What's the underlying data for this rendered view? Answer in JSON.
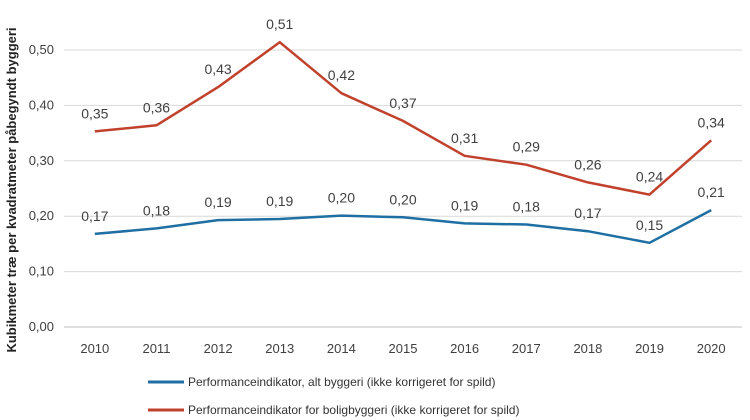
{
  "chart_data": {
    "type": "line",
    "title": "",
    "xlabel": "",
    "ylabel": "Kubikmeter træ per kvadratmeter påbegyndt byggeri",
    "ylim": [
      0,
      0.5
    ],
    "yticks": [
      0.0,
      0.1,
      0.2,
      0.3,
      0.4,
      0.5
    ],
    "ytick_labels": [
      "0,00",
      "0,10",
      "0,20",
      "0,30",
      "0,40",
      "0,50"
    ],
    "x": [
      "2010",
      "2011",
      "2012",
      "2013",
      "2014",
      "2015",
      "2016",
      "2017",
      "2018",
      "2019",
      "2020"
    ],
    "grid": true,
    "legend_position": "bottom-center",
    "series": [
      {
        "name": "Performanceindikator, alt byggeri (ikke korrigeret for spild)",
        "color": "#1f6fa3",
        "values": [
          0.168,
          0.178,
          0.193,
          0.195,
          0.201,
          0.198,
          0.187,
          0.185,
          0.173,
          0.152,
          0.211
        ],
        "labels": [
          "0,17",
          "0,18",
          "0,19",
          "0,19",
          "0,20",
          "0,20",
          "0,19",
          "0,18",
          "0,17",
          "0,15",
          "0,21"
        ]
      },
      {
        "name": "Performanceindikator for boligbyggeri (ikke korrigeret for spild)",
        "color": "#c0422c",
        "values": [
          0.353,
          0.364,
          0.433,
          0.514,
          0.422,
          0.372,
          0.309,
          0.293,
          0.261,
          0.239,
          0.337
        ],
        "labels": [
          "0,35",
          "0,36",
          "0,43",
          "0,51",
          "0,42",
          "0,37",
          "0,31",
          "0,29",
          "0,26",
          "0,24",
          "0,34"
        ]
      }
    ]
  }
}
